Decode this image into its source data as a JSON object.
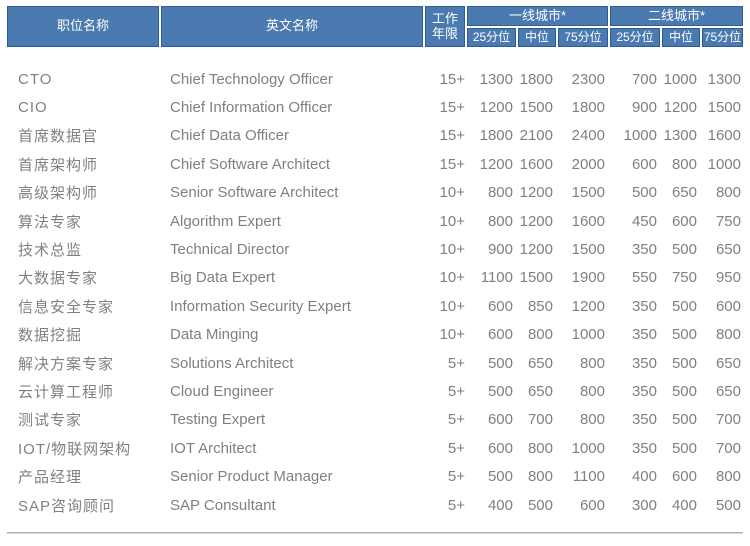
{
  "colors": {
    "header_bg": "#4a7ab0",
    "header_border": "#2d5c8f",
    "header_text": "#ffffff",
    "body_text": "#808080",
    "bottom_rule": "#aeaeae"
  },
  "chart_data": {
    "type": "table",
    "header": {
      "position": "职位名称",
      "english": "英文名称",
      "experience": "工作年限",
      "tier1_group": "一线城市*",
      "tier2_group": "二线城市*",
      "percentile_cols": [
        "25分位",
        "中位",
        "75分位"
      ]
    },
    "rows": [
      {
        "position": "CTO",
        "english": "Chief Technology Officer",
        "experience": "15+",
        "tier1": [
          1300,
          1800,
          2300
        ],
        "tier2": [
          700,
          1000,
          1300
        ]
      },
      {
        "position": "CIO",
        "english": "Chief Information Officer",
        "experience": "15+",
        "tier1": [
          1200,
          1500,
          1800
        ],
        "tier2": [
          900,
          1200,
          1500
        ]
      },
      {
        "position": "首席数据官",
        "english": "Chief Data Officer",
        "experience": "15+",
        "tier1": [
          1800,
          2100,
          2400
        ],
        "tier2": [
          1000,
          1300,
          1600
        ]
      },
      {
        "position": "首席架构师",
        "english": "Chief Software Architect",
        "experience": "15+",
        "tier1": [
          1200,
          1600,
          2000
        ],
        "tier2": [
          600,
          800,
          1000
        ]
      },
      {
        "position": "高级架构师",
        "english": "Senior Software Architect",
        "experience": "10+",
        "tier1": [
          800,
          1200,
          1500
        ],
        "tier2": [
          500,
          650,
          800
        ]
      },
      {
        "position": "算法专家",
        "english": "Algorithm Expert",
        "experience": "10+",
        "tier1": [
          800,
          1200,
          1600
        ],
        "tier2": [
          450,
          600,
          750
        ]
      },
      {
        "position": "技术总监",
        "english": "Technical Director",
        "experience": "10+",
        "tier1": [
          900,
          1200,
          1500
        ],
        "tier2": [
          350,
          500,
          650
        ]
      },
      {
        "position": "大数据专家",
        "english": "Big Data Expert",
        "experience": "10+",
        "tier1": [
          1100,
          1500,
          1900
        ],
        "tier2": [
          550,
          750,
          950
        ]
      },
      {
        "position": "信息安全专家",
        "english": "Information Security Expert",
        "experience": "10+",
        "tier1": [
          600,
          850,
          1200
        ],
        "tier2": [
          350,
          500,
          600
        ]
      },
      {
        "position": "数据挖掘",
        "english": "Data Minging",
        "experience": "10+",
        "tier1": [
          600,
          800,
          1000
        ],
        "tier2": [
          350,
          500,
          800
        ]
      },
      {
        "position": "解决方案专家",
        "english": "Solutions Architect",
        "experience": "5+",
        "tier1": [
          500,
          650,
          800
        ],
        "tier2": [
          350,
          500,
          650
        ]
      },
      {
        "position": "云计算工程师",
        "english": "Cloud Engineer",
        "experience": "5+",
        "tier1": [
          500,
          650,
          800
        ],
        "tier2": [
          350,
          500,
          650
        ]
      },
      {
        "position": "测试专家",
        "english": "Testing Expert",
        "experience": "5+",
        "tier1": [
          600,
          700,
          800
        ],
        "tier2": [
          350,
          500,
          700
        ]
      },
      {
        "position": "IOT/物联网架构",
        "english": "IOT Architect",
        "experience": "5+",
        "tier1": [
          600,
          800,
          1000
        ],
        "tier2": [
          350,
          500,
          700
        ]
      },
      {
        "position": "产品经理",
        "english": "Senior Product Manager",
        "experience": "5+",
        "tier1": [
          500,
          800,
          1100
        ],
        "tier2": [
          400,
          600,
          800
        ]
      },
      {
        "position": "SAP咨询顾问",
        "english": "SAP Consultant",
        "experience": "5+",
        "tier1": [
          400,
          500,
          600
        ],
        "tier2": [
          300,
          400,
          500
        ]
      }
    ]
  }
}
